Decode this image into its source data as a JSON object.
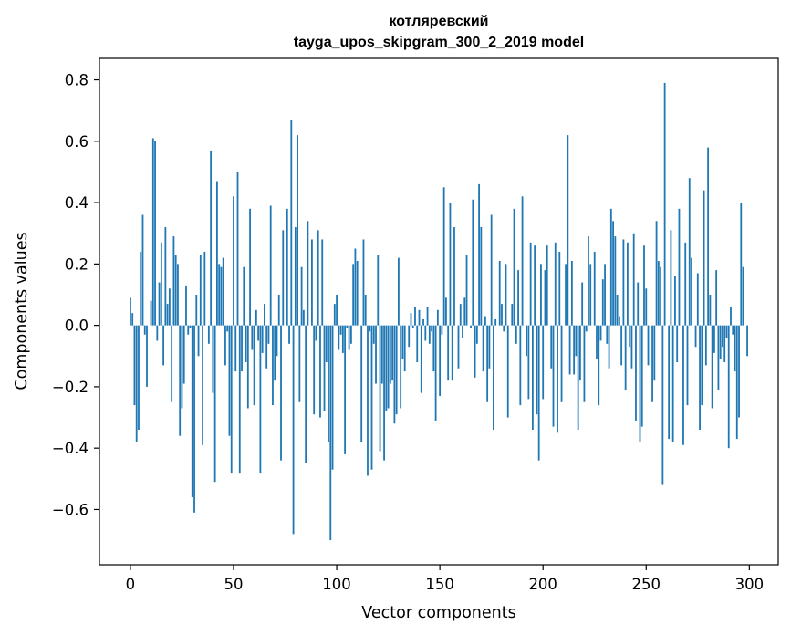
{
  "chart_data": {
    "type": "bar",
    "title": "котляревский",
    "subtitle": "tayga_upos_skipgram_300_2_2019 model",
    "xlabel": "Vector components",
    "ylabel": "Components values",
    "xlim": [
      -15,
      314
    ],
    "ylim": [
      -0.78,
      0.87
    ],
    "xticks": [
      0,
      50,
      100,
      150,
      200,
      250,
      300
    ],
    "yticks": [
      -0.6,
      -0.4,
      -0.2,
      0.0,
      0.2,
      0.4,
      0.6,
      0.8
    ],
    "ytick_labels": [
      "−0.6",
      "−0.4",
      "−0.2",
      "0.0",
      "0.2",
      "0.4",
      "0.6",
      "0.8"
    ],
    "grid": false,
    "bar_color": "#1f77b4",
    "values": [
      0.09,
      0.04,
      -0.26,
      -0.38,
      -0.34,
      0.24,
      0.36,
      -0.03,
      -0.2,
      0.0,
      0.08,
      0.61,
      0.6,
      -0.05,
      0.14,
      0.27,
      -0.13,
      0.32,
      0.07,
      0.12,
      -0.25,
      0.29,
      0.23,
      0.2,
      -0.36,
      -0.27,
      -0.19,
      0.13,
      -0.03,
      -0.01,
      -0.56,
      -0.61,
      0.1,
      -0.1,
      0.23,
      -0.39,
      0.24,
      0.0,
      -0.06,
      0.57,
      -0.22,
      -0.51,
      0.47,
      0.2,
      0.19,
      0.22,
      -0.13,
      -0.02,
      -0.36,
      -0.48,
      0.42,
      -0.15,
      0.5,
      -0.48,
      -0.15,
      0.19,
      -0.12,
      -0.27,
      0.38,
      -0.08,
      -0.26,
      0.05,
      -0.05,
      -0.48,
      -0.09,
      0.07,
      -0.14,
      -0.06,
      0.39,
      -0.26,
      -0.18,
      -0.1,
      0.1,
      -0.44,
      0.31,
      0.0,
      0.38,
      -0.06,
      0.67,
      -0.68,
      0.32,
      0.62,
      -0.25,
      0.19,
      0.05,
      -0.45,
      0.34,
      0.0,
      0.28,
      -0.29,
      -0.05,
      0.31,
      -0.3,
      0.28,
      -0.28,
      -0.12,
      -0.38,
      -0.7,
      -0.47,
      0.07,
      0.1,
      -0.08,
      -0.03,
      -0.09,
      -0.42,
      -0.01,
      -0.08,
      -0.06,
      0.2,
      0.25,
      0.21,
      0.0,
      -0.38,
      0.28,
      0.1,
      -0.49,
      -0.02,
      -0.47,
      -0.06,
      -0.19,
      0.23,
      -0.41,
      -0.19,
      -0.44,
      -0.28,
      -0.27,
      -0.19,
      -0.18,
      -0.32,
      -0.29,
      0.22,
      -0.27,
      -0.11,
      -0.15,
      0.0,
      -0.07,
      0.04,
      -0.01,
      0.06,
      -0.12,
      0.05,
      -0.22,
      0.02,
      -0.05,
      0.06,
      -0.06,
      -0.02,
      -0.15,
      -0.31,
      0.05,
      -0.23,
      -0.03,
      0.45,
      0.09,
      -0.18,
      0.4,
      -0.18,
      0.32,
      0.0,
      -0.14,
      0.07,
      -0.04,
      0.09,
      0.23,
      0.0,
      -0.01,
      0.41,
      -0.17,
      -0.06,
      0.46,
      0.32,
      -0.15,
      0.03,
      -0.25,
      -0.14,
      0.36,
      -0.34,
      0.02,
      0.0,
      0.21,
      0.07,
      -0.02,
      0.2,
      -0.3,
      0.0,
      0.07,
      0.38,
      -0.06,
      0.18,
      -0.26,
      0.42,
      0.0,
      -0.1,
      -0.24,
      0.27,
      -0.34,
      0.26,
      -0.29,
      -0.44,
      0.2,
      -0.24,
      0.18,
      0.26,
      0.0,
      -0.14,
      -0.33,
      0.27,
      -0.35,
      0.24,
      -0.25,
      0.0,
      0.2,
      0.62,
      -0.16,
      0.21,
      -0.16,
      -0.1,
      -0.34,
      -0.18,
      0.14,
      -0.25,
      -0.02,
      0.29,
      0.2,
      0.0,
      0.24,
      -0.11,
      -0.26,
      -0.05,
      0.15,
      0.2,
      -0.06,
      -0.14,
      0.38,
      0.34,
      0.29,
      0.1,
      0.03,
      -0.13,
      0.28,
      -0.21,
      0.27,
      -0.07,
      -0.14,
      0.3,
      -0.31,
      0.14,
      -0.38,
      -0.33,
      0.26,
      0.12,
      -0.13,
      0.0,
      -0.25,
      -0.18,
      0.34,
      0.21,
      0.19,
      -0.52,
      0.79,
      0.0,
      -0.37,
      0.31,
      -0.38,
      0.16,
      -0.12,
      0.38,
      0.0,
      -0.39,
      0.27,
      -0.26,
      0.48,
      0.22,
      0.0,
      -0.07,
      0.17,
      -0.34,
      -0.26,
      0.44,
      -0.13,
      0.58,
      0.1,
      -0.27,
      -0.09,
      0.18,
      -0.21,
      -0.11,
      -0.07,
      -0.12,
      -0.04,
      -0.4,
      0.06,
      -0.03,
      -0.15,
      -0.37,
      -0.3,
      0.4,
      0.19,
      0.0,
      -0.1
    ]
  }
}
